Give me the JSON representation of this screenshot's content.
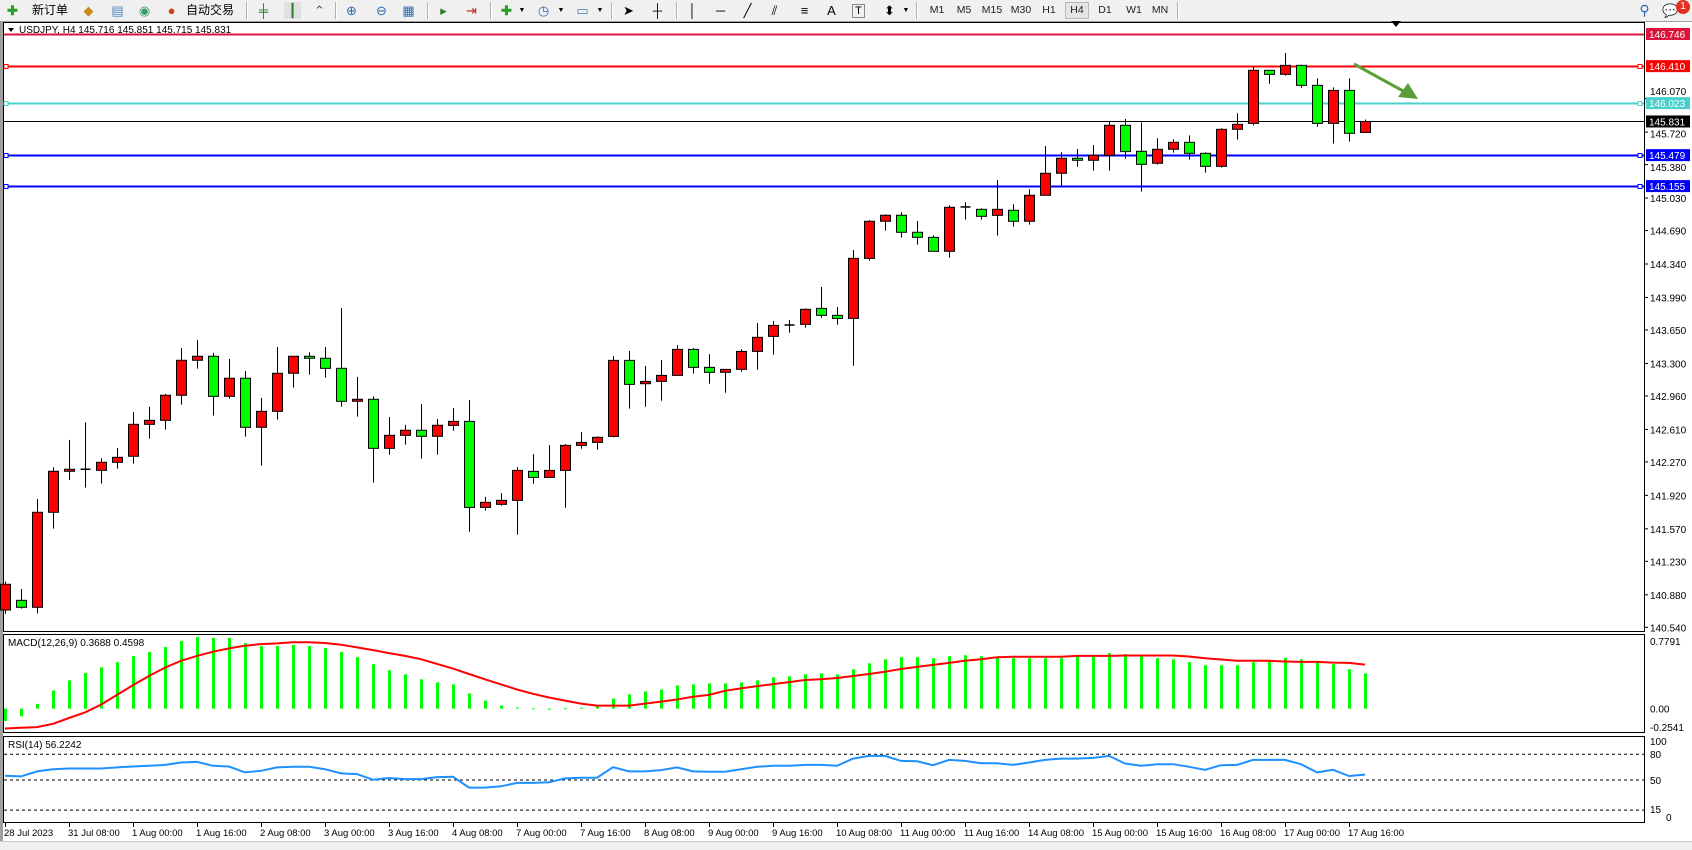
{
  "toolbar": {
    "new_order": "新订单",
    "auto_trading": "自动交易",
    "icons": [
      "new-order-icon",
      "market-watch-icon",
      "navigator-icon",
      "signals-icon",
      "auto-trading-icon",
      "bar-chart-icon",
      "candlestick-icon",
      "line-chart-icon",
      "zoom-in-icon",
      "zoom-out-icon",
      "tile-windows-icon",
      "auto-scroll-icon",
      "chart-shift-icon",
      "indicators-icon",
      "periods-icon",
      "templates-icon",
      "cursor-icon",
      "crosshair-icon",
      "vertical-line-icon",
      "horizontal-line-icon",
      "trendline-icon",
      "equidistant-channel-icon",
      "fibonacci-icon",
      "text-icon",
      "text-label-icon",
      "arrows-icon",
      "search-icon",
      "notification-icon"
    ],
    "text_tool": "A",
    "text_label_tool": "T",
    "timeframes": [
      "M1",
      "M5",
      "M15",
      "M30",
      "H1",
      "H4",
      "D1",
      "W1",
      "MN"
    ],
    "active_timeframe": "H4",
    "notification_count": "1"
  },
  "chart": {
    "title": "USDJPY, H4  145.716 145.851 145.715 145.831"
  },
  "chart_data": {
    "type": "candlestick",
    "symbol": "USDJPY",
    "timeframe": "H4",
    "up_color": "#ff0000",
    "down_color": "#00ff00",
    "candles_ohlc": [
      [
        140.721,
        141.02,
        140.68,
        140.99
      ],
      [
        140.822,
        140.941,
        140.735,
        140.749
      ],
      [
        140.749,
        141.882,
        140.686,
        141.743
      ],
      [
        141.743,
        142.214,
        141.572,
        142.172
      ],
      [
        142.172,
        142.5,
        142.081,
        142.193
      ],
      [
        142.193,
        142.684,
        142.001,
        142.193
      ],
      [
        142.182,
        142.308,
        142.043,
        142.266
      ],
      [
        142.266,
        142.416,
        142.2,
        142.318
      ],
      [
        142.329,
        142.792,
        142.252,
        142.663
      ],
      [
        142.663,
        142.845,
        142.514,
        142.705
      ],
      [
        142.705,
        142.981,
        142.608,
        142.967
      ],
      [
        142.967,
        143.462,
        142.869,
        143.333
      ],
      [
        143.333,
        143.546,
        143.246,
        143.375
      ],
      [
        143.375,
        143.41,
        142.754,
        142.956
      ],
      [
        142.956,
        143.347,
        142.932,
        143.145
      ],
      [
        143.145,
        143.221,
        142.534,
        142.632
      ],
      [
        142.632,
        142.939,
        142.231,
        142.799
      ],
      [
        142.799,
        143.472,
        142.712,
        143.197
      ],
      [
        143.197,
        143.375,
        143.047,
        143.375
      ],
      [
        143.375,
        143.417,
        143.183,
        143.354
      ],
      [
        143.354,
        143.472,
        143.152,
        143.249
      ],
      [
        143.249,
        143.88,
        142.848,
        142.904
      ],
      [
        142.904,
        143.159,
        142.744,
        142.925
      ],
      [
        142.925,
        142.956,
        142.053,
        142.412
      ],
      [
        142.412,
        142.74,
        142.346,
        142.548
      ],
      [
        142.548,
        142.657,
        142.451,
        142.601
      ],
      [
        142.601,
        142.876,
        142.304,
        142.538
      ],
      [
        142.538,
        142.719,
        142.346,
        142.653
      ],
      [
        142.652,
        142.833,
        142.596,
        142.694
      ],
      [
        142.694,
        142.917,
        141.54,
        141.794
      ],
      [
        141.794,
        141.903,
        141.76,
        141.847
      ],
      [
        141.826,
        141.944,
        141.812,
        141.868
      ],
      [
        141.868,
        142.216,
        141.509,
        142.181
      ],
      [
        142.171,
        142.352,
        142.042,
        142.108
      ],
      [
        142.108,
        142.446,
        142.108,
        142.181
      ],
      [
        142.181,
        142.457,
        141.791,
        142.443
      ],
      [
        142.443,
        142.582,
        142.408,
        142.474
      ],
      [
        142.474,
        142.537,
        142.398,
        142.527
      ],
      [
        142.537,
        143.377,
        142.527,
        143.332
      ],
      [
        143.332,
        143.43,
        142.827,
        143.081
      ],
      [
        143.088,
        143.273,
        142.847,
        143.112
      ],
      [
        143.112,
        143.336,
        142.91,
        143.175
      ],
      [
        143.175,
        143.492,
        143.175,
        143.447
      ],
      [
        143.447,
        143.461,
        143.193,
        143.259
      ],
      [
        143.259,
        143.398,
        143.088,
        143.207
      ],
      [
        143.207,
        143.238,
        142.994,
        143.238
      ],
      [
        143.238,
        143.447,
        143.214,
        143.426
      ],
      [
        143.426,
        143.723,
        143.234,
        143.573
      ],
      [
        143.583,
        143.744,
        143.391,
        143.698
      ],
      [
        143.702,
        143.754,
        143.621,
        143.702
      ],
      [
        143.709,
        143.876,
        143.674,
        143.866
      ],
      [
        143.876,
        144.099,
        143.778,
        143.803
      ],
      [
        143.803,
        143.89,
        143.705,
        143.771
      ],
      [
        143.771,
        144.486,
        143.276,
        144.399
      ],
      [
        144.399,
        144.8,
        144.375,
        144.787
      ],
      [
        144.787,
        144.86,
        144.689,
        144.85
      ],
      [
        144.85,
        144.881,
        144.616,
        144.672
      ],
      [
        144.672,
        144.79,
        144.543,
        144.619
      ],
      [
        144.619,
        144.64,
        144.473,
        144.473
      ],
      [
        144.473,
        144.954,
        144.407,
        144.933
      ],
      [
        144.937,
        144.986,
        144.804,
        144.937
      ],
      [
        144.912,
        144.923,
        144.804,
        144.839
      ],
      [
        144.849,
        145.219,
        144.637,
        144.912
      ],
      [
        144.902,
        144.965,
        144.731,
        144.787
      ],
      [
        144.787,
        145.122,
        144.752,
        145.059
      ],
      [
        145.059,
        145.575,
        145.059,
        145.289
      ],
      [
        145.289,
        145.509,
        145.163,
        145.446
      ],
      [
        145.446,
        145.543,
        145.359,
        145.425
      ],
      [
        145.425,
        145.585,
        145.317,
        145.477
      ],
      [
        145.477,
        145.833,
        145.317,
        145.791
      ],
      [
        145.791,
        145.857,
        145.442,
        145.516
      ],
      [
        145.519,
        145.822,
        145.097,
        145.383
      ],
      [
        145.394,
        145.655,
        145.38,
        145.54
      ],
      [
        145.54,
        145.645,
        145.505,
        145.613
      ],
      [
        145.613,
        145.686,
        145.432,
        145.498
      ],
      [
        145.498,
        145.509,
        145.296,
        145.362
      ],
      [
        145.362,
        145.76,
        145.348,
        145.749
      ],
      [
        145.749,
        145.917,
        145.641,
        145.801
      ],
      [
        145.811,
        146.404,
        145.79,
        146.366
      ],
      [
        146.366,
        146.366,
        146.226,
        146.324
      ],
      [
        146.324,
        146.547,
        146.31,
        146.418
      ],
      [
        146.418,
        146.425,
        146.184,
        146.209
      ],
      [
        146.209,
        146.282,
        145.776,
        145.811
      ],
      [
        145.811,
        146.188,
        145.599,
        146.156
      ],
      [
        146.156,
        146.282,
        145.62,
        145.707
      ],
      [
        145.716,
        145.851,
        145.715,
        145.831
      ]
    ],
    "price_range": [
      140.54,
      146.746
    ],
    "price_ticks": [
      "146.070",
      "145.720",
      "145.380",
      "145.030",
      "144.690",
      "144.340",
      "143.990",
      "143.650",
      "143.300",
      "142.960",
      "142.610",
      "142.270",
      "141.920",
      "141.570",
      "141.230",
      "140.880",
      "140.540"
    ],
    "horizontal_lines": [
      {
        "price": "146.746",
        "color": "#dc143c"
      },
      {
        "price": "146.410",
        "color": "#ff0000"
      },
      {
        "price": "146.023",
        "color": "#48d1cc"
      },
      {
        "price": "145.479",
        "color": "#0000ff"
      },
      {
        "price": "145.155",
        "color": "#0000ff"
      }
    ],
    "bid_line": {
      "price": "145.831",
      "color": "#000000"
    },
    "arrow_color": "#5b9e35",
    "time_labels": [
      "28 Jul 2023",
      "31 Jul 08:00",
      "1 Aug 00:00",
      "1 Aug 16:00",
      "2 Aug 08:00",
      "3 Aug 00:00",
      "3 Aug 16:00",
      "4 Aug 08:00",
      "7 Aug 00:00",
      "7 Aug 16:00",
      "8 Aug 08:00",
      "9 Aug 00:00",
      "9 Aug 16:00",
      "10 Aug 08:00",
      "11 Aug 00:00",
      "11 Aug 16:00",
      "14 Aug 08:00",
      "15 Aug 00:00",
      "15 Aug 16:00",
      "16 Aug 08:00",
      "17 Aug 00:00",
      "17 Aug 16:00"
    ],
    "macd": {
      "label": "MACD(12,26,9) 0.3688 0.4598",
      "range": [
        -0.2541,
        0.7791
      ],
      "axis_labels": [
        "0.7791",
        "0.00",
        "-0.2541"
      ],
      "histogram_color": "#00ff00",
      "signal_color": "#ff0000",
      "main": [
        -0.13,
        -0.08,
        0.05,
        0.19,
        0.295,
        0.372,
        0.432,
        0.485,
        0.548,
        0.59,
        0.643,
        0.706,
        0.748,
        0.738,
        0.738,
        0.685,
        0.653,
        0.653,
        0.664,
        0.653,
        0.632,
        0.59,
        0.537,
        0.464,
        0.4,
        0.358,
        0.306,
        0.274,
        0.253,
        0.158,
        0.084,
        0.032,
        0.011,
        0.003,
        -0.01,
        0.005,
        0.01,
        0.03,
        0.105,
        0.148,
        0.179,
        0.2,
        0.242,
        0.253,
        0.263,
        0.263,
        0.274,
        0.295,
        0.327,
        0.337,
        0.358,
        0.369,
        0.358,
        0.411,
        0.474,
        0.516,
        0.537,
        0.537,
        0.527,
        0.548,
        0.558,
        0.548,
        0.537,
        0.527,
        0.527,
        0.527,
        0.527,
        0.548,
        0.548,
        0.58,
        0.569,
        0.548,
        0.527,
        0.516,
        0.485,
        0.453,
        0.453,
        0.453,
        0.485,
        0.495,
        0.527,
        0.516,
        0.485,
        0.464,
        0.411,
        0.3688
      ],
      "signal": [
        -0.207,
        -0.2,
        -0.193,
        -0.158,
        -0.098,
        -0.039,
        0.042,
        0.144,
        0.246,
        0.341,
        0.428,
        0.499,
        0.551,
        0.594,
        0.629,
        0.657,
        0.674,
        0.681,
        0.692,
        0.692,
        0.685,
        0.667,
        0.639,
        0.611,
        0.58,
        0.551,
        0.516,
        0.467,
        0.418,
        0.362,
        0.306,
        0.253,
        0.2,
        0.155,
        0.116,
        0.084,
        0.053,
        0.032,
        0.032,
        0.032,
        0.053,
        0.074,
        0.095,
        0.125,
        0.144,
        0.186,
        0.211,
        0.235,
        0.256,
        0.277,
        0.299,
        0.306,
        0.32,
        0.341,
        0.362,
        0.386,
        0.414,
        0.436,
        0.457,
        0.478,
        0.499,
        0.516,
        0.537,
        0.541,
        0.541,
        0.541,
        0.541,
        0.551,
        0.551,
        0.551,
        0.555,
        0.555,
        0.555,
        0.555,
        0.544,
        0.527,
        0.513,
        0.499,
        0.499,
        0.499,
        0.492,
        0.488,
        0.488,
        0.481,
        0.478,
        0.4598
      ]
    },
    "rsi": {
      "label": "RSI(14) 56.2242",
      "range": [
        0,
        100
      ],
      "levels": [
        80,
        50,
        15
      ],
      "axis_labels": [
        "100",
        "80",
        "50",
        "15",
        "0"
      ],
      "color": "#1e90ff",
      "values": [
        55,
        54.2,
        60,
        62.6,
        63.4,
        63.4,
        63.4,
        64.6,
        65.7,
        66.5,
        67.6,
        70.3,
        71,
        66.5,
        65.7,
        58.8,
        60.7,
        64.6,
        65.3,
        65.3,
        62.6,
        57.7,
        56.9,
        50.4,
        52.3,
        51.1,
        51.1,
        53.4,
        53.8,
        41.2,
        41.2,
        42.7,
        46.6,
        46.6,
        47.3,
        51.9,
        52.7,
        52.7,
        64.9,
        60,
        60,
        61.5,
        64.6,
        60,
        59.6,
        59.6,
        62.6,
        65.3,
        66.5,
        66.5,
        67.6,
        67.6,
        66.5,
        74.9,
        78,
        78,
        72.2,
        71.8,
        67.2,
        73.4,
        72.2,
        69.5,
        69.5,
        67.6,
        70.3,
        73.4,
        74.9,
        74.9,
        75.7,
        78,
        69.2,
        66.5,
        68.4,
        68.4,
        65.3,
        61.9,
        67.2,
        67.6,
        73.4,
        73.4,
        73.4,
        68.4,
        58.8,
        61.9,
        54.6,
        56.2242
      ]
    }
  }
}
